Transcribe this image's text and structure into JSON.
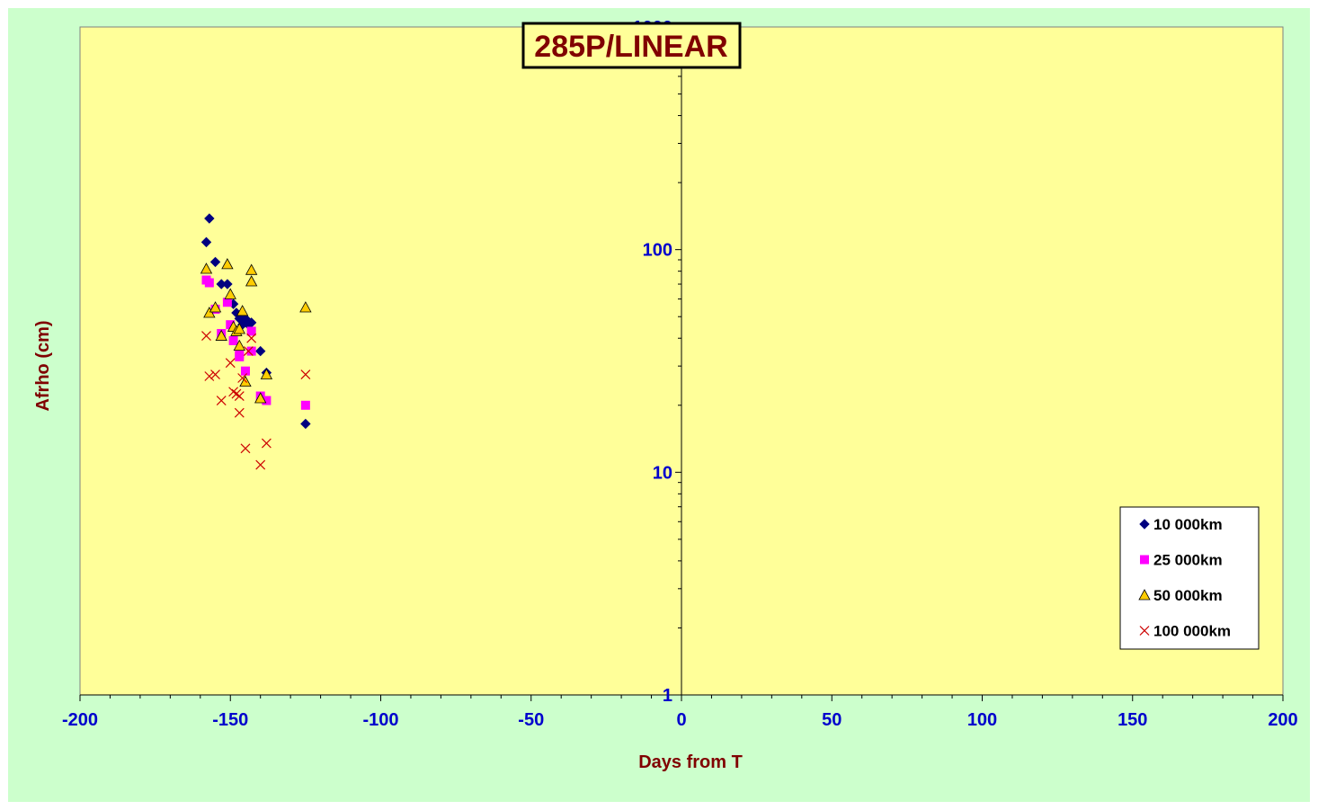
{
  "chart_data": {
    "type": "scatter",
    "title": "285P/LINEAR",
    "xlabel": "Days from T",
    "ylabel": "Afrho (cm)",
    "xlim": [
      -200,
      200
    ],
    "ylim": [
      1,
      1000
    ],
    "yscale": "log",
    "x_ticks": [
      "-200",
      "-150",
      "-100",
      "-50",
      "0",
      "50",
      "100",
      "150",
      "200"
    ],
    "y_ticks": [
      "1",
      "10",
      "100",
      "1000"
    ],
    "grid": false,
    "legend_position": "bottom-right",
    "colors": {
      "plot_background": "#ffff99",
      "chart_background": "#ccffcc",
      "tick_labels": "#0000cc",
      "titles": "#800000"
    },
    "series": [
      {
        "name": "10 000km",
        "marker": "diamond",
        "color": "#000080",
        "points": [
          [
            -157,
            138
          ],
          [
            -158,
            108
          ],
          [
            -155,
            88
          ],
          [
            -153,
            70
          ],
          [
            -151,
            70
          ],
          [
            -149,
            57
          ],
          [
            -148,
            52
          ],
          [
            -147,
            49
          ],
          [
            -146,
            48
          ],
          [
            -145,
            49
          ],
          [
            -144,
            46
          ],
          [
            -143,
            47
          ],
          [
            -146,
            46
          ],
          [
            -140,
            35
          ],
          [
            -138,
            28
          ],
          [
            -125,
            16.5
          ]
        ]
      },
      {
        "name": "25 000km",
        "marker": "square",
        "color": "#ff00ff",
        "points": [
          [
            -158,
            73
          ],
          [
            -157,
            71
          ],
          [
            -155,
            54
          ],
          [
            -153,
            42
          ],
          [
            -151,
            58
          ],
          [
            -150,
            46
          ],
          [
            -149,
            39
          ],
          [
            -147,
            33
          ],
          [
            -147,
            34
          ],
          [
            -145,
            28.5
          ],
          [
            -143,
            43
          ],
          [
            -143,
            35
          ],
          [
            -140,
            22
          ],
          [
            -138,
            21
          ],
          [
            -125,
            20
          ]
        ]
      },
      {
        "name": "50 000km",
        "marker": "triangle",
        "color": "#ffcc00",
        "points": [
          [
            -158,
            82
          ],
          [
            -157,
            52
          ],
          [
            -155,
            55
          ],
          [
            -153,
            41
          ],
          [
            -151,
            86
          ],
          [
            -150,
            63
          ],
          [
            -149,
            45
          ],
          [
            -148,
            43
          ],
          [
            -147,
            44
          ],
          [
            -146,
            53
          ],
          [
            -147,
            37
          ],
          [
            -145,
            25.5
          ],
          [
            -143,
            81
          ],
          [
            -143,
            72
          ],
          [
            -140,
            21.5
          ],
          [
            -138,
            27.5
          ],
          [
            -125,
            55
          ]
        ]
      },
      {
        "name": "100 000km",
        "marker": "x",
        "color": "#cc0000",
        "points": [
          [
            -158,
            41
          ],
          [
            -157,
            27
          ],
          [
            -155,
            27.5
          ],
          [
            -153,
            21
          ],
          [
            -150,
            31
          ],
          [
            -149,
            23
          ],
          [
            -148,
            22.5
          ],
          [
            -147,
            22
          ],
          [
            -147,
            18.5
          ],
          [
            -146,
            26.5
          ],
          [
            -145,
            12.8
          ],
          [
            -144,
            35
          ],
          [
            -143,
            40
          ],
          [
            -140,
            10.8
          ],
          [
            -138,
            13.5
          ],
          [
            -125,
            27.5
          ]
        ]
      }
    ]
  }
}
